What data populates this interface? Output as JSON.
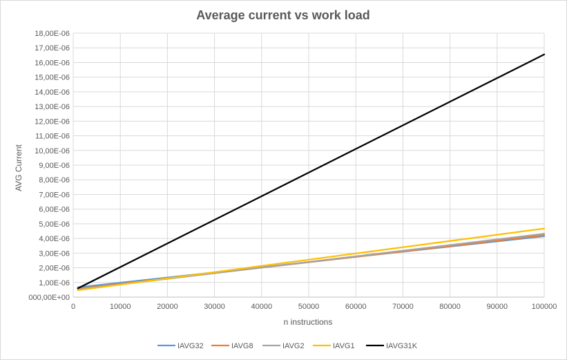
{
  "chart_data": {
    "type": "line",
    "title": "Average current vs work load",
    "xlabel": "n instructions",
    "ylabel": "AVG Current",
    "xlim": [
      0,
      100000
    ],
    "ylim": [
      0,
      1.8e-05
    ],
    "grid": true,
    "legend_position": "bottom",
    "x_ticks": [
      {
        "value": 0,
        "label": "0"
      },
      {
        "value": 10000,
        "label": "10000"
      },
      {
        "value": 20000,
        "label": "20000"
      },
      {
        "value": 30000,
        "label": "30000"
      },
      {
        "value": 40000,
        "label": "40000"
      },
      {
        "value": 50000,
        "label": "50000"
      },
      {
        "value": 60000,
        "label": "60000"
      },
      {
        "value": 70000,
        "label": "70000"
      },
      {
        "value": 80000,
        "label": "80000"
      },
      {
        "value": 90000,
        "label": "90000"
      },
      {
        "value": 100000,
        "label": "100000"
      }
    ],
    "y_ticks": [
      {
        "value": 0,
        "label": "000,00E+00"
      },
      {
        "value": 1e-06,
        "label": "1,00E-06"
      },
      {
        "value": 2e-06,
        "label": "2,00E-06"
      },
      {
        "value": 3e-06,
        "label": "3,00E-06"
      },
      {
        "value": 4e-06,
        "label": "4,00E-06"
      },
      {
        "value": 5e-06,
        "label": "5,00E-06"
      },
      {
        "value": 6e-06,
        "label": "6,00E-06"
      },
      {
        "value": 7e-06,
        "label": "7,00E-06"
      },
      {
        "value": 8e-06,
        "label": "8,00E-06"
      },
      {
        "value": 9e-06,
        "label": "9,00E-06"
      },
      {
        "value": 1e-05,
        "label": "10,00E-06"
      },
      {
        "value": 1.1e-05,
        "label": "11,00E-06"
      },
      {
        "value": 1.2e-05,
        "label": "12,00E-06"
      },
      {
        "value": 1.3e-05,
        "label": "13,00E-06"
      },
      {
        "value": 1.4e-05,
        "label": "14,00E-06"
      },
      {
        "value": 1.5e-05,
        "label": "15,00E-06"
      },
      {
        "value": 1.6e-05,
        "label": "16,00E-06"
      },
      {
        "value": 1.7e-05,
        "label": "17,00E-06"
      },
      {
        "value": 1.8e-05,
        "label": "18,00E-06"
      }
    ],
    "series": [
      {
        "name": "IAVG32",
        "color": "#5b9bd5",
        "x": [
          1000,
          100000
        ],
        "y": [
          6.7e-07,
          4.15e-06
        ]
      },
      {
        "name": "IAVG8",
        "color": "#ed7d31",
        "x": [
          1000,
          100000
        ],
        "y": [
          5.7e-07,
          4.22e-06
        ]
      },
      {
        "name": "IAVG2",
        "color": "#a5a5a5",
        "x": [
          1000,
          100000
        ],
        "y": [
          5.2e-07,
          4.32e-06
        ]
      },
      {
        "name": "IAVG1",
        "color": "#ffc000",
        "x": [
          1000,
          100000
        ],
        "y": [
          4.7e-07,
          4.68e-06
        ]
      },
      {
        "name": "IAVG31K",
        "color": "#000000",
        "x": [
          1000,
          100000
        ],
        "y": [
          6e-07,
          1.655e-05
        ]
      }
    ]
  }
}
